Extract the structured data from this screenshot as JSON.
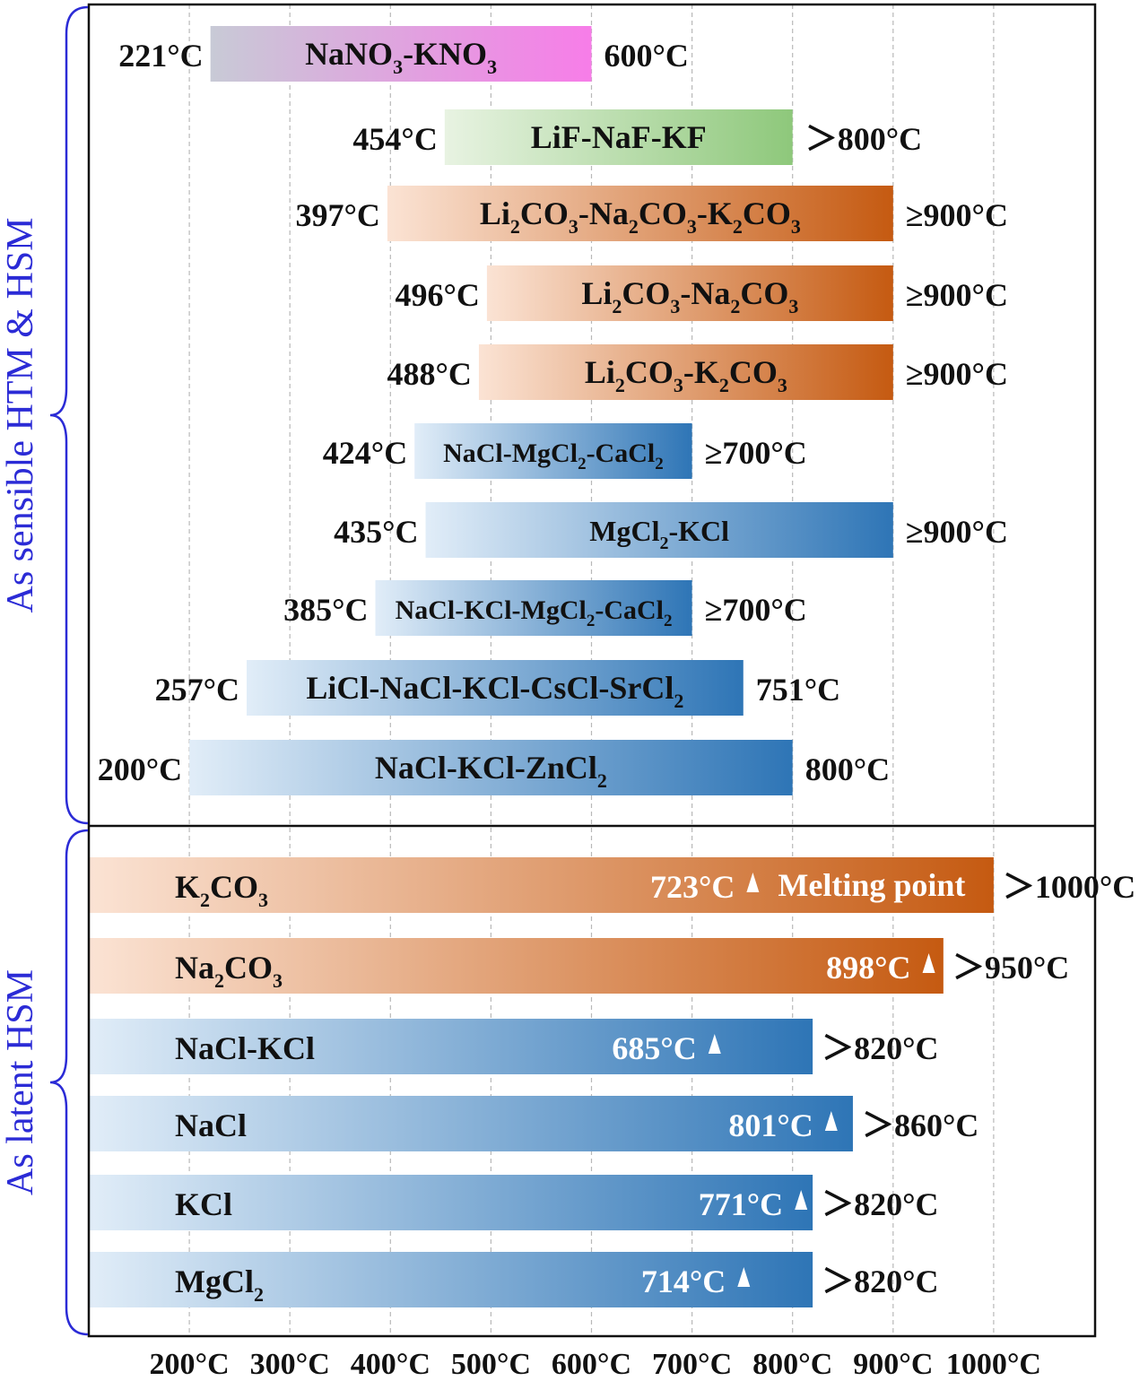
{
  "chart_data": {
    "type": "bar",
    "orientation": "horizontal",
    "x_ticks": [
      "200°C",
      "300°C",
      "400°C",
      "500°C",
      "600°C",
      "700°C",
      "800°C",
      "900°C",
      "1000°C"
    ],
    "xlim": [
      100,
      1100
    ],
    "grid": "vertical dashed",
    "groups": [
      {
        "name": "As sensible HTM & HSM",
        "bars": [
          {
            "label": [
              [
                "NaNO",
                ""
              ],
              [
                "3",
                "sub"
              ],
              [
                "-KNO",
                ""
              ],
              [
                "3",
                "sub"
              ]
            ],
            "start": 221,
            "end": 600,
            "start_label": "221°C",
            "end_label": "600°C",
            "colors": [
              "#c8cad6",
              "#f77de8"
            ]
          },
          {
            "label": [
              [
                "LiF-NaF-KF",
                ""
              ]
            ],
            "start": 454,
            "end": 800,
            "start_label": "454°C",
            "end_label": "＞800°C",
            "colors": [
              "#e8f3e2",
              "#8ec87b"
            ]
          },
          {
            "label": [
              [
                "Li",
                ""
              ],
              [
                "2",
                "sub"
              ],
              [
                "CO",
                ""
              ],
              [
                "3",
                "sub"
              ],
              [
                "-Na",
                ""
              ],
              [
                "2",
                "sub"
              ],
              [
                "CO",
                ""
              ],
              [
                "3",
                "sub"
              ],
              [
                "-K",
                ""
              ],
              [
                "2",
                "sub"
              ],
              [
                "CO",
                ""
              ],
              [
                "3",
                "sub"
              ]
            ],
            "start": 397,
            "end": 900,
            "start_label": "397°C",
            "end_label": "≥900°C",
            "colors": [
              "#fbe3d4",
              "#c55a11"
            ]
          },
          {
            "label": [
              [
                "Li",
                ""
              ],
              [
                "2",
                "sub"
              ],
              [
                "CO",
                ""
              ],
              [
                "3",
                "sub"
              ],
              [
                "-Na",
                ""
              ],
              [
                "2",
                "sub"
              ],
              [
                "CO",
                ""
              ],
              [
                "3",
                "sub"
              ]
            ],
            "start": 496,
            "end": 900,
            "start_label": "496°C",
            "end_label": "≥900°C",
            "colors": [
              "#fbe3d4",
              "#c55a11"
            ]
          },
          {
            "label": [
              [
                "Li",
                ""
              ],
              [
                "2",
                "sub"
              ],
              [
                "CO",
                ""
              ],
              [
                "3",
                "sub"
              ],
              [
                "-K",
                ""
              ],
              [
                "2",
                "sub"
              ],
              [
                "CO",
                ""
              ],
              [
                "3",
                "sub"
              ]
            ],
            "start": 488,
            "end": 900,
            "start_label": "488°C",
            "end_label": "≥900°C",
            "colors": [
              "#fbe3d4",
              "#c55a11"
            ]
          },
          {
            "label": [
              [
                "NaCl-MgCl",
                ""
              ],
              [
                "2",
                "sub"
              ],
              [
                "-CaCl",
                ""
              ],
              [
                "2",
                "sub"
              ]
            ],
            "start": 424,
            "end": 700,
            "start_label": "424°C",
            "end_label": "≥700°C",
            "colors": [
              "#e1edf8",
              "#2e75b6"
            ]
          },
          {
            "label": [
              [
                "MgCl",
                ""
              ],
              [
                "2",
                "sub"
              ],
              [
                "-KCl",
                ""
              ]
            ],
            "start": 435,
            "end": 900,
            "start_label": "435°C",
            "end_label": "≥900°C",
            "colors": [
              "#e1edf8",
              "#2e75b6"
            ]
          },
          {
            "label": [
              [
                "NaCl-KCl-MgCl",
                ""
              ],
              [
                "2",
                "sub"
              ],
              [
                "-CaCl",
                ""
              ],
              [
                "2",
                "sub"
              ]
            ],
            "start": 385,
            "end": 700,
            "start_label": "385°C",
            "end_label": "≥700°C",
            "colors": [
              "#e1edf8",
              "#2e75b6"
            ]
          },
          {
            "label": [
              [
                "LiCl-NaCl-KCl-CsCl-SrCl",
                ""
              ],
              [
                "2",
                "sub"
              ]
            ],
            "start": 257,
            "end": 751,
            "start_label": "257°C",
            "end_label": "751°C",
            "colors": [
              "#e1edf8",
              "#2e75b6"
            ]
          },
          {
            "label": [
              [
                "NaCl-KCl-ZnCl",
                ""
              ],
              [
                "2",
                "sub"
              ]
            ],
            "start": 200,
            "end": 800,
            "start_label": "200°C",
            "end_label": "800°C",
            "colors": [
              "#e1edf8",
              "#2e75b6"
            ]
          }
        ]
      },
      {
        "name": "As latent HSM",
        "bars": [
          {
            "label": [
              [
                "K",
                ""
              ],
              [
                "2",
                "sub"
              ],
              [
                "CO",
                ""
              ],
              [
                "3",
                "sub"
              ]
            ],
            "start": 100,
            "end": 1000,
            "melting_point": 723,
            "mp_label": "723°C",
            "note": "Melting point",
            "end_label": "＞1000°C",
            "colors": [
              "#fbe3d4",
              "#c55a11"
            ]
          },
          {
            "label": [
              [
                "Na",
                ""
              ],
              [
                "2",
                "sub"
              ],
              [
                "CO",
                ""
              ],
              [
                "3",
                "sub"
              ]
            ],
            "start": 100,
            "end": 950,
            "melting_point": 898,
            "mp_label": "898°C",
            "end_label": "＞950°C",
            "colors": [
              "#fbe3d4",
              "#c55a11"
            ]
          },
          {
            "label": [
              [
                "NaCl-KCl",
                ""
              ]
            ],
            "start": 100,
            "end": 820,
            "melting_point": 685,
            "mp_label": "685°C",
            "end_label": "＞820°C",
            "colors": [
              "#e1edf8",
              "#2e75b6"
            ]
          },
          {
            "label": [
              [
                "NaCl",
                ""
              ]
            ],
            "start": 100,
            "end": 860,
            "melting_point": 801,
            "mp_label": "801°C",
            "end_label": "＞860°C",
            "colors": [
              "#e1edf8",
              "#2e75b6"
            ]
          },
          {
            "label": [
              [
                "KCl",
                ""
              ]
            ],
            "start": 100,
            "end": 820,
            "melting_point": 771,
            "mp_label": "771°C",
            "end_label": "＞820°C",
            "colors": [
              "#e1edf8",
              "#2e75b6"
            ]
          },
          {
            "label": [
              [
                "MgCl",
                ""
              ],
              [
                "2",
                "sub"
              ]
            ],
            "start": 100,
            "end": 820,
            "melting_point": 714,
            "mp_label": "714°C",
            "end_label": "＞820°C",
            "colors": [
              "#e1edf8",
              "#2e75b6"
            ]
          }
        ]
      }
    ]
  }
}
